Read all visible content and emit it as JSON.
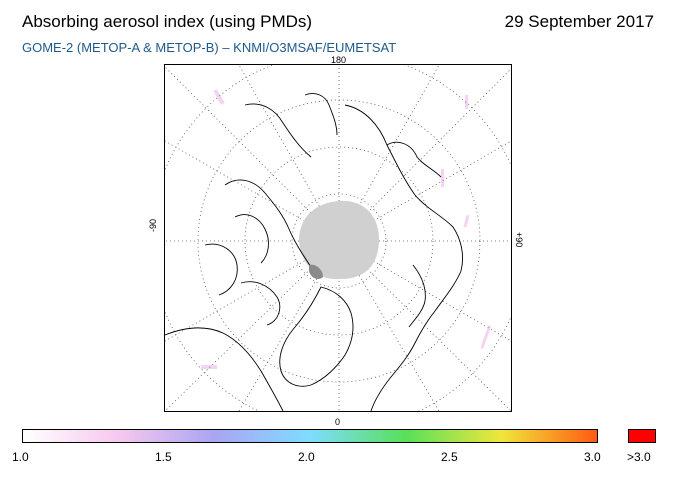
{
  "header": {
    "title": "Absorbing aerosol index (using PMDs)",
    "date": "29 September 2017",
    "subtitle": "GOME-2 (METOP-A & METOP-B)  –  KNMI/O3MSAF/EUMETSAT"
  },
  "map": {
    "projection": "north-polar-stereographic",
    "longitude_labels": {
      "top": "180",
      "bottom": "0",
      "left": "-90",
      "right": "+90"
    },
    "no_data_color": "#d0d0d0",
    "coastline_color": "#000000",
    "gridline_style": "dotted"
  },
  "colorbar": {
    "tick_labels": [
      "1.0",
      "1.5",
      "2.0",
      "2.5",
      "3.0"
    ],
    "overflow_label": ">3.0",
    "overflow_color": "#ff0000",
    "gradient_colors": [
      "#ffffff",
      "#f7c7ef",
      "#a9a5f2",
      "#7fdcff",
      "#57e05a",
      "#f0e63c",
      "#ff5a12"
    ],
    "range": [
      1.0,
      3.0
    ]
  }
}
